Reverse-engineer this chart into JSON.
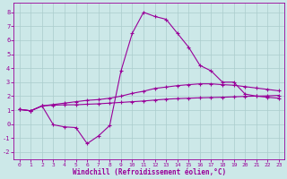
{
  "xlabel": "Windchill (Refroidissement éolien,°C)",
  "bg_color": "#cce8e8",
  "grid_color": "#aacccc",
  "line_color": "#990099",
  "xlim": [
    -0.5,
    23.5
  ],
  "ylim": [
    -2.5,
    8.7
  ],
  "xticks": [
    0,
    1,
    2,
    3,
    4,
    5,
    6,
    7,
    8,
    9,
    10,
    11,
    12,
    13,
    14,
    15,
    16,
    17,
    18,
    19,
    20,
    21,
    22,
    23
  ],
  "yticks": [
    -2,
    -1,
    0,
    1,
    2,
    3,
    4,
    5,
    6,
    7,
    8
  ],
  "line1_x": [
    0,
    1,
    2,
    3,
    4,
    5,
    6,
    7,
    8,
    9,
    10,
    11,
    12,
    13,
    14,
    15,
    16,
    17,
    18,
    19,
    20,
    21,
    22,
    23
  ],
  "line1_y": [
    1.05,
    0.95,
    1.3,
    1.4,
    1.5,
    1.6,
    1.7,
    1.75,
    1.85,
    2.0,
    2.2,
    2.35,
    2.55,
    2.65,
    2.75,
    2.82,
    2.88,
    2.88,
    2.82,
    2.78,
    2.68,
    2.58,
    2.48,
    2.38
  ],
  "line2_x": [
    0,
    1,
    2,
    3,
    4,
    5,
    6,
    7,
    8,
    9,
    10,
    11,
    12,
    13,
    14,
    15,
    16,
    17,
    18,
    19,
    20,
    21,
    22,
    23
  ],
  "line2_y": [
    1.05,
    0.95,
    1.3,
    1.35,
    1.38,
    1.38,
    1.42,
    1.45,
    1.5,
    1.55,
    1.6,
    1.65,
    1.72,
    1.78,
    1.82,
    1.85,
    1.88,
    1.9,
    1.92,
    1.95,
    1.98,
    2.0,
    2.02,
    2.05
  ],
  "line3_x": [
    0,
    1,
    2,
    3,
    4,
    5,
    6,
    7,
    8,
    9,
    10,
    11,
    12,
    13,
    14,
    15,
    16,
    17,
    18,
    19,
    20,
    21,
    22,
    23
  ],
  "line3_y": [
    1.05,
    0.95,
    1.3,
    -0.05,
    -0.2,
    -0.25,
    -1.4,
    -0.85,
    -0.1,
    3.8,
    6.5,
    8.0,
    7.7,
    7.5,
    6.5,
    5.5,
    4.2,
    3.8,
    3.0,
    3.0,
    2.15,
    2.0,
    1.92,
    1.85
  ]
}
